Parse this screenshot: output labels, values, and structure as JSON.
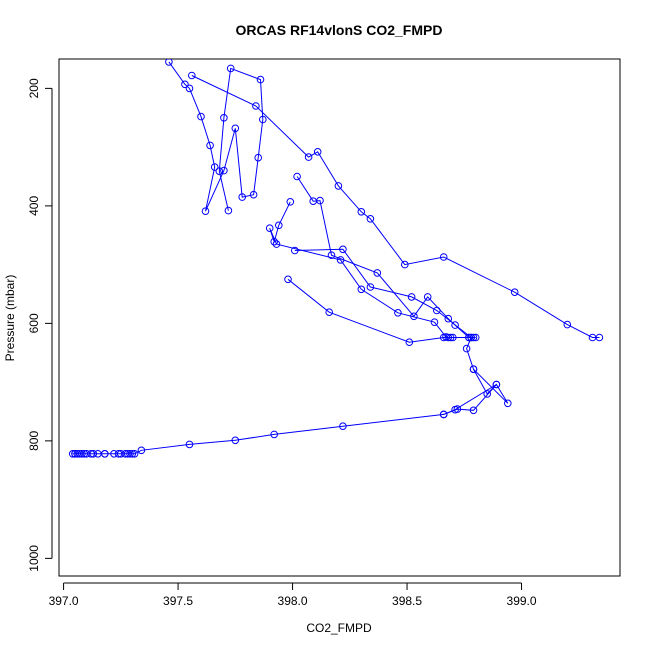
{
  "chart_data": {
    "type": "line",
    "title": "ORCAS RF14vlonS CO2_FMPD",
    "xlabel": "CO2_FMPD",
    "ylabel": "Pressure (mbar)",
    "xlim": [
      396.98,
      399.43
    ],
    "ylim": [
      1030,
      150
    ],
    "y_reversed": true,
    "xticks": [
      397.0,
      397.5,
      398.0,
      398.5,
      399.0
    ],
    "xtick_labels": [
      "397.0",
      "397.5",
      "398.0",
      "398.5",
      "399.0"
    ],
    "yticks": [
      200,
      400,
      600,
      800,
      1000
    ],
    "ytick_labels": [
      "200",
      "400",
      "600",
      "800",
      "1000"
    ],
    "grid": false,
    "series_color": "#0000ff",
    "marker": "open-circle",
    "series": [
      {
        "x": [
          397.46,
          397.53,
          397.55,
          397.6,
          397.64,
          397.66,
          397.62,
          397.7,
          397.75,
          397.78,
          397.83,
          397.85,
          397.87,
          397.86,
          397.73,
          397.7,
          397.68,
          397.72
        ],
        "y": [
          155,
          193,
          200,
          248,
          297,
          334,
          409,
          340,
          268,
          385,
          381,
          318,
          253,
          185,
          166,
          250,
          341,
          408
        ]
      },
      {
        "x": [
          397.56,
          397.84,
          398.07,
          398.11,
          398.2,
          398.3,
          398.34,
          398.49,
          398.66,
          398.97,
          399.2,
          399.31,
          399.34
        ],
        "y": [
          178,
          230,
          317,
          308,
          366,
          410,
          422,
          500,
          487,
          547,
          602,
          624,
          624
        ]
      },
      {
        "x": [
          397.99,
          397.94,
          397.92,
          397.9,
          397.93,
          398.21,
          398.3,
          398.46,
          398.62,
          398.67,
          398.68,
          398.7
        ],
        "y": [
          393,
          433,
          461,
          438,
          465,
          492,
          542,
          582,
          598,
          623,
          624,
          624
        ]
      },
      {
        "x": [
          398.02,
          398.09,
          398.12,
          398.17,
          398.37,
          398.53,
          398.59,
          398.68,
          398.71,
          398.77,
          398.8,
          398.79
        ],
        "y": [
          350,
          392,
          391,
          484,
          514,
          588,
          555,
          592,
          603,
          624,
          624,
          624
        ]
      },
      {
        "x": [
          398.01,
          398.22,
          398.34,
          398.52,
          398.63,
          398.78,
          398.78,
          398.76,
          398.79,
          398.94,
          398.89,
          398.79,
          398.72,
          398.66
        ],
        "y": [
          476,
          474,
          538,
          555,
          578,
          624,
          624,
          643,
          678,
          736,
          704,
          748,
          746,
          755
        ]
      },
      {
        "x": [
          397.98,
          398.16,
          398.51,
          398.66,
          398.69,
          398.77
        ],
        "y": [
          525,
          581,
          632,
          624,
          624,
          624
        ]
      },
      {
        "x": [
          398.79,
          398.85,
          398.89,
          398.71,
          398.66,
          398.22,
          397.92,
          397.75,
          397.55,
          397.34,
          397.31,
          397.29,
          397.27,
          397.25,
          397.22,
          397.18,
          397.15,
          397.12,
          397.1,
          397.08,
          397.06,
          397.05,
          397.04,
          397.05,
          397.07,
          397.09,
          397.13,
          397.18,
          397.24,
          397.28,
          397.3
        ],
        "y": [
          678,
          720,
          704,
          747,
          755,
          775,
          789,
          799,
          806,
          816,
          822,
          822,
          822,
          822,
          822,
          822,
          822,
          822,
          822,
          822,
          822,
          822,
          822,
          822,
          822,
          822,
          822,
          822,
          822,
          822,
          822
        ]
      }
    ]
  }
}
